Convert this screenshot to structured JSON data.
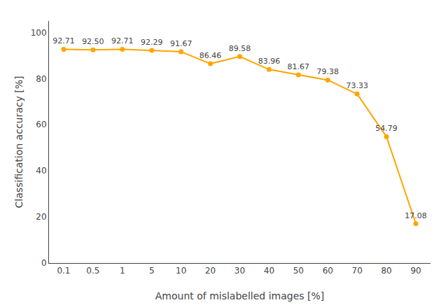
{
  "chart_data": {
    "type": "line",
    "xlabel": "Amount of mislabelled images [%]",
    "ylabel": "Classification accuracy [%]",
    "categories": [
      "0.1",
      "0.5",
      "1",
      "5",
      "10",
      "20",
      "30",
      "40",
      "50",
      "60",
      "70",
      "80",
      "90"
    ],
    "values": [
      92.71,
      92.5,
      92.71,
      92.29,
      91.67,
      86.46,
      89.58,
      83.96,
      81.67,
      79.38,
      73.33,
      54.79,
      17.08
    ],
    "value_labels": [
      "92.71",
      "92.50",
      "92.71",
      "92.29",
      "91.67",
      "86.46",
      "89.58",
      "83.96",
      "81.67",
      "79.38",
      "73.33",
      "54.79",
      "17.08"
    ],
    "data_labels": true,
    "color": "#FFA500",
    "marker": "circle",
    "ylim": [
      0,
      105
    ],
    "yticks": [
      0,
      20,
      40,
      60,
      80,
      100
    ],
    "grid": false
  }
}
